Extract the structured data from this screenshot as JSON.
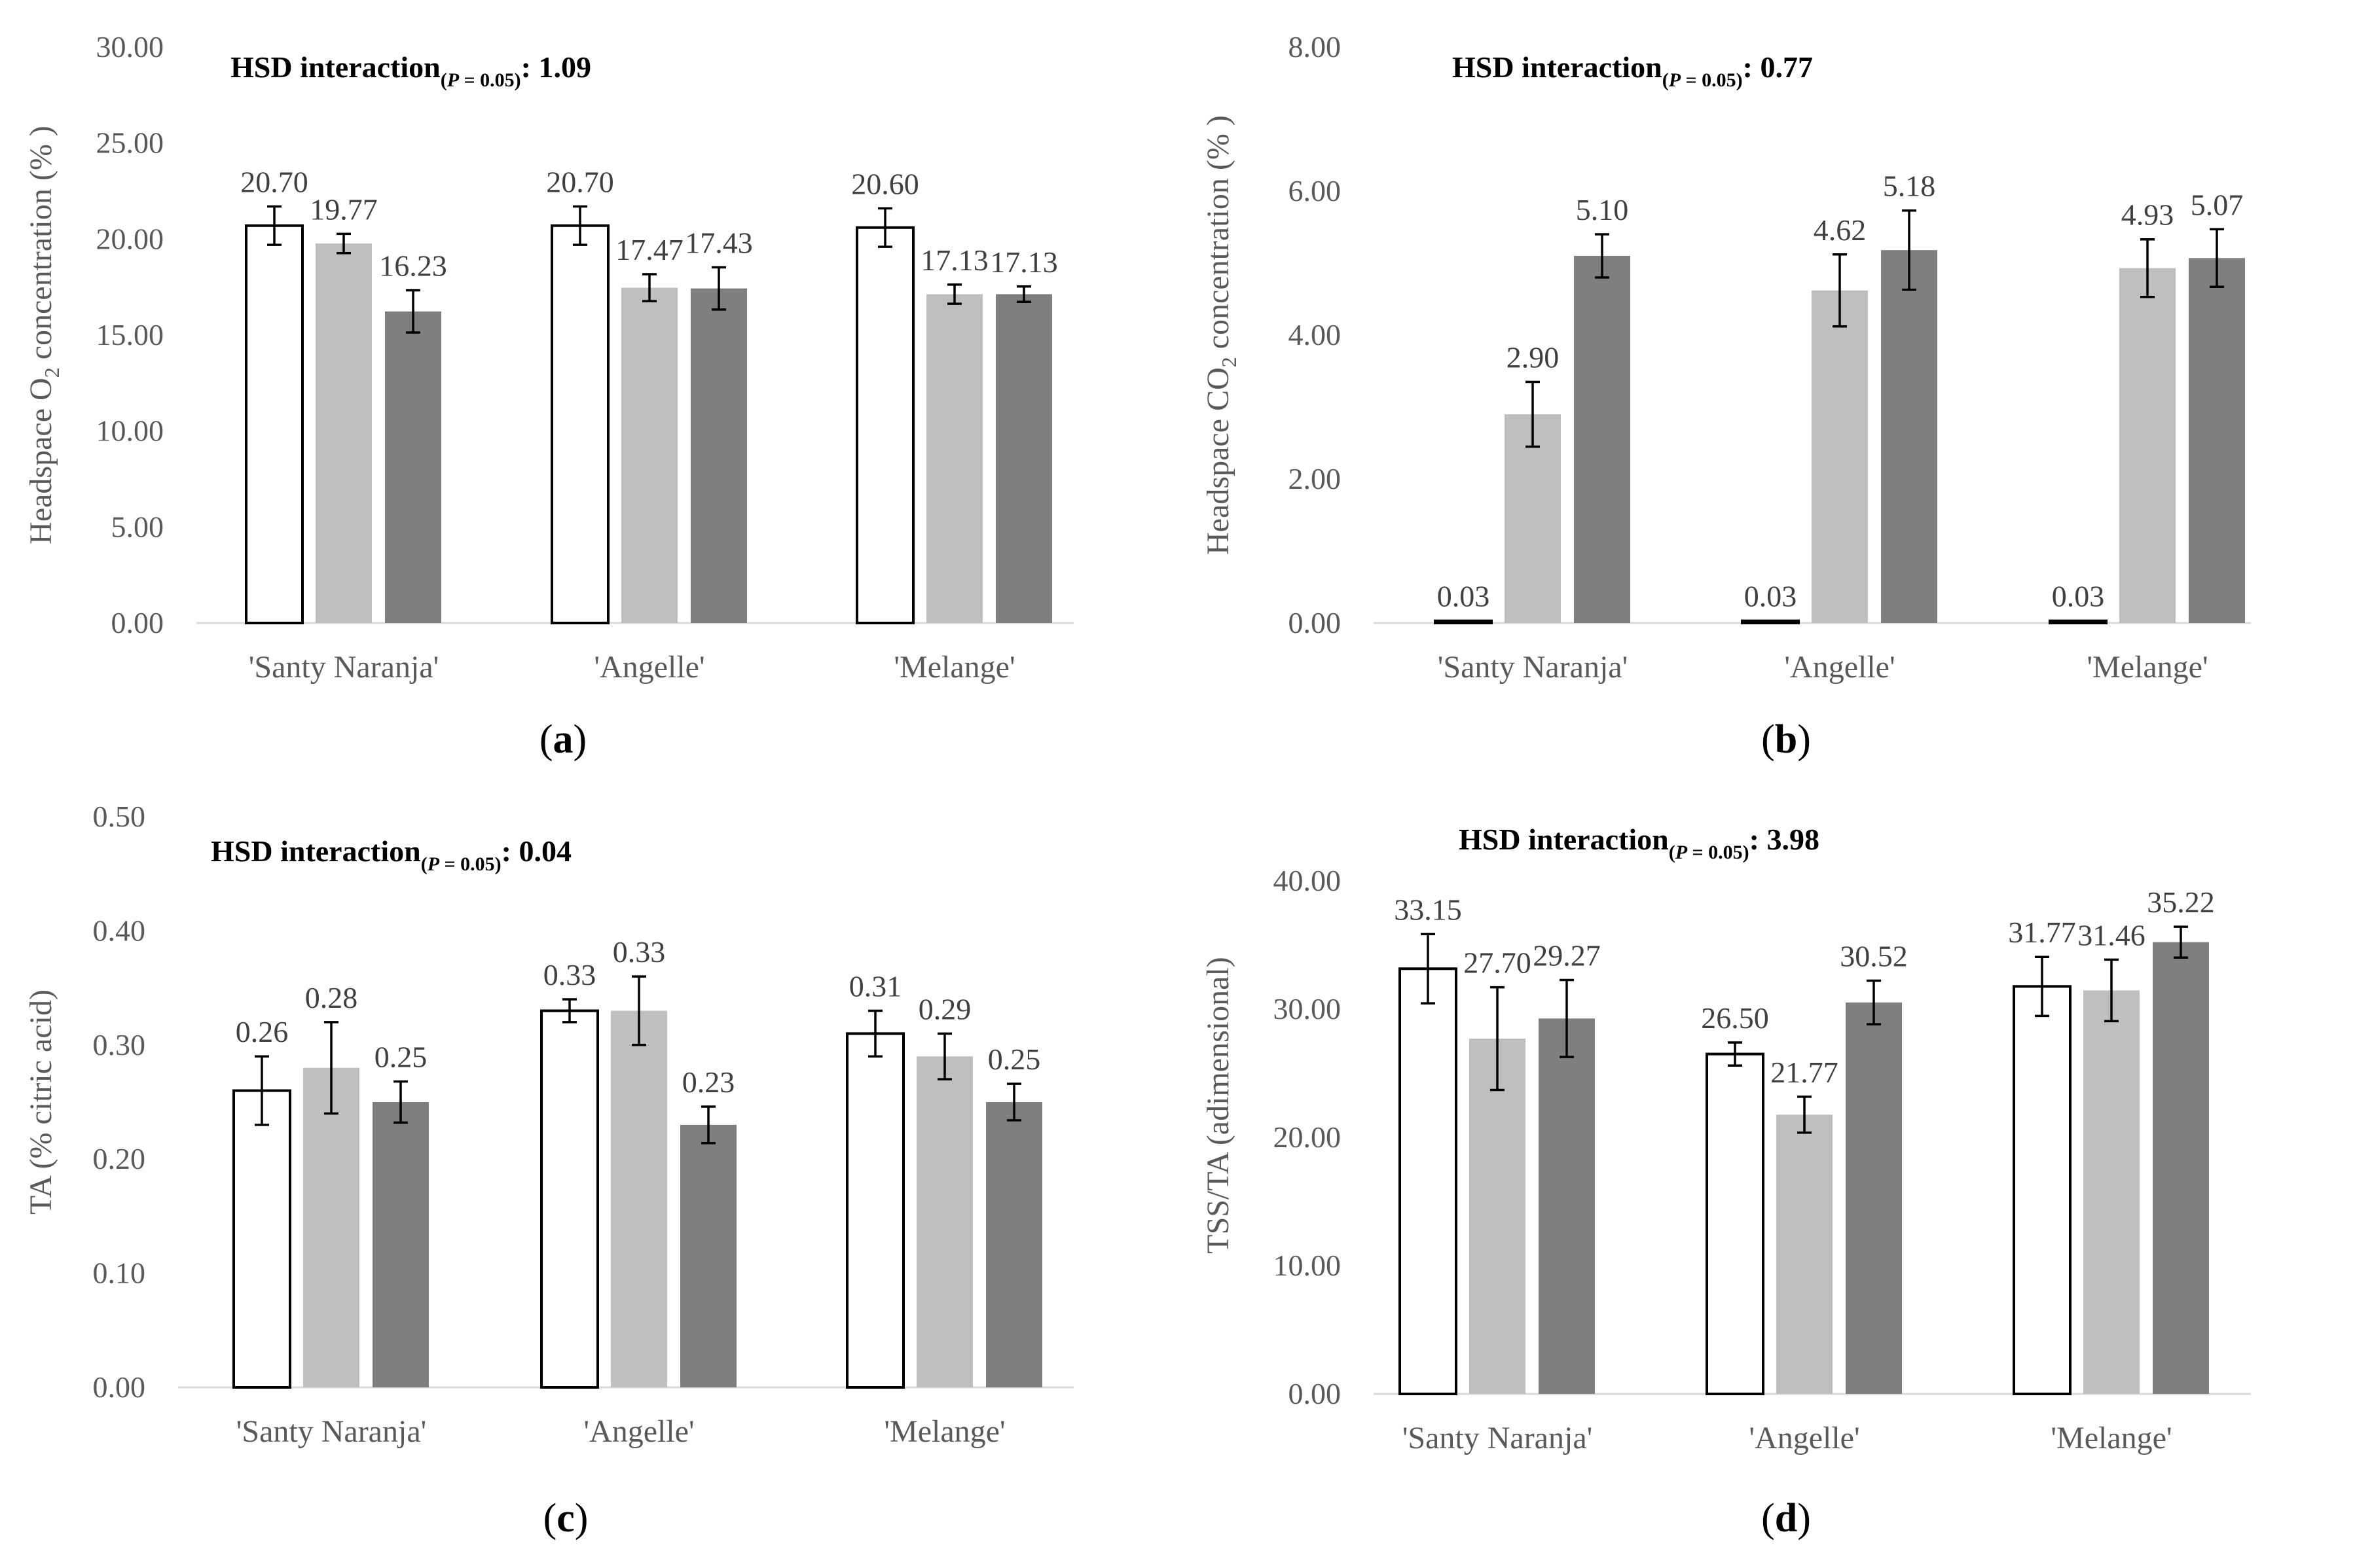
{
  "chart_data": [
    {
      "id": "a",
      "type": "bar",
      "caption_letter": "a",
      "categories": [
        "'Santy Naranja'",
        "'Angelle'",
        "'Melange'"
      ],
      "series": [
        {
          "name": "series-1",
          "color": "#ffffff",
          "values": [
            20.7,
            20.7,
            20.6
          ],
          "errors": [
            1.0,
            1.0,
            1.0
          ]
        },
        {
          "name": "series-2",
          "color": "#bfbfbf",
          "values": [
            19.77,
            17.47,
            17.13
          ],
          "errors": [
            0.5,
            0.7,
            0.5
          ]
        },
        {
          "name": "series-3",
          "color": "#7f7f7f",
          "values": [
            16.23,
            17.43,
            17.13
          ],
          "errors": [
            1.1,
            1.1,
            0.4
          ]
        }
      ],
      "labels": [
        [
          "20.70",
          "20.70",
          "20.60"
        ],
        [
          "19.77",
          "17.47",
          "17.13"
        ],
        [
          "16.23",
          "17.43",
          "17.13"
        ]
      ],
      "ylabel_parts": [
        "Headspace O",
        "2",
        " concentration (% )"
      ],
      "yticks": [
        "0.00",
        "5.00",
        "10.00",
        "15.00",
        "20.00",
        "25.00",
        "30.00"
      ],
      "ylim": [
        0,
        30
      ],
      "hsd": {
        "prefix": "HSD interaction",
        "sub": "(P = 0.05)",
        "suffix": ": 1.09"
      }
    },
    {
      "id": "b",
      "type": "bar",
      "caption_letter": "b",
      "categories": [
        "'Santy Naranja'",
        "'Angelle'",
        "'Melange'"
      ],
      "series": [
        {
          "name": "series-1",
          "color": "#ffffff",
          "values": [
            0.03,
            0.03,
            0.03
          ],
          "errors": [
            0,
            0,
            0
          ]
        },
        {
          "name": "series-2",
          "color": "#bfbfbf",
          "values": [
            2.9,
            4.62,
            4.93
          ],
          "errors": [
            0.45,
            0.5,
            0.4
          ]
        },
        {
          "name": "series-3",
          "color": "#7f7f7f",
          "values": [
            5.1,
            5.18,
            5.07
          ],
          "errors": [
            0.3,
            0.55,
            0.4
          ]
        }
      ],
      "labels": [
        [
          "0.03",
          "0.03",
          "0.03"
        ],
        [
          "2.90",
          "4.62",
          "4.93"
        ],
        [
          "5.10",
          "5.18",
          "5.07"
        ]
      ],
      "ylabel_parts": [
        "Headspace CO",
        "2",
        " concentration (% )"
      ],
      "yticks": [
        "0.00",
        "2.00",
        "4.00",
        "6.00",
        "8.00"
      ],
      "ylim": [
        0,
        8
      ],
      "hsd": {
        "prefix": "HSD interaction",
        "sub": "(P = 0.05)",
        "suffix": ": 0.77"
      }
    },
    {
      "id": "c",
      "type": "bar",
      "caption_letter": "c",
      "categories": [
        "'Santy Naranja'",
        "'Angelle'",
        "'Melange'"
      ],
      "series": [
        {
          "name": "series-1",
          "color": "#ffffff",
          "values": [
            0.26,
            0.33,
            0.31
          ],
          "errors": [
            0.03,
            0.01,
            0.02
          ]
        },
        {
          "name": "series-2",
          "color": "#bfbfbf",
          "values": [
            0.28,
            0.33,
            0.29
          ],
          "errors": [
            0.04,
            0.03,
            0.02
          ]
        },
        {
          "name": "series-3",
          "color": "#7f7f7f",
          "values": [
            0.25,
            0.23,
            0.25
          ],
          "errors": [
            0.018,
            0.016,
            0.016
          ]
        }
      ],
      "labels": [
        [
          "0.26",
          "0.33",
          "0.31"
        ],
        [
          "0.28",
          "0.33",
          "0.29"
        ],
        [
          "0.25",
          "0.23",
          "0.25"
        ]
      ],
      "ylabel_parts": [
        "TA (% citric acid)",
        "",
        ""
      ],
      "yticks": [
        "0.00",
        "0.10",
        "0.20",
        "0.30",
        "0.40",
        "0.50"
      ],
      "ylim": [
        0,
        0.5
      ],
      "hsd": {
        "prefix": "HSD interaction",
        "sub": "(P = 0.05)",
        "suffix": ": 0.04"
      }
    },
    {
      "id": "d",
      "type": "bar",
      "caption_letter": "d",
      "categories": [
        "'Santy Naranja'",
        "'Angelle'",
        "'Melange'"
      ],
      "series": [
        {
          "name": "series-1",
          "color": "#ffffff",
          "values": [
            33.15,
            26.5,
            31.77
          ],
          "errors": [
            2.7,
            0.9,
            2.3
          ]
        },
        {
          "name": "series-2",
          "color": "#bfbfbf",
          "values": [
            27.7,
            21.77,
            31.46
          ],
          "errors": [
            4.0,
            1.4,
            2.4
          ]
        },
        {
          "name": "series-3",
          "color": "#7f7f7f",
          "values": [
            29.27,
            30.52,
            35.22
          ],
          "errors": [
            3.0,
            1.7,
            1.2
          ]
        }
      ],
      "labels": [
        [
          "33.15",
          "26.50",
          "31.77"
        ],
        [
          "27.70",
          "21.77",
          "31.46"
        ],
        [
          "29.27",
          "30.52",
          "35.22"
        ]
      ],
      "ylabel_parts": [
        "TSS/TA (adimensional)",
        "",
        ""
      ],
      "yticks": [
        "0.00",
        "10.00",
        "20.00",
        "30.00",
        "40.00"
      ],
      "ylim": [
        0,
        45
      ],
      "hsd": {
        "prefix": "HSD interaction",
        "sub": "(P = 0.05)",
        "suffix": ": 3.98"
      }
    }
  ]
}
